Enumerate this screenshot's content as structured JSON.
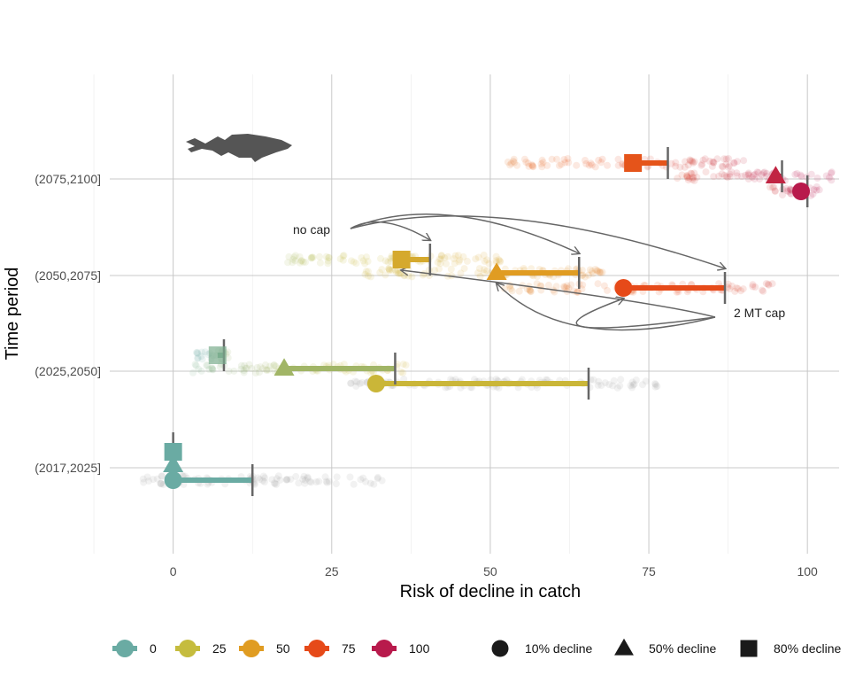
{
  "chart_data": {
    "type": "scatter",
    "xlabel": "Risk of decline in catch",
    "ylabel": "Time period",
    "xlim": [
      -10,
      105
    ],
    "x_ticks": [
      0,
      25,
      50,
      75,
      100
    ],
    "categories": [
      "(2017,2025]",
      "(2025,2050]",
      "(2050,2075]",
      "(2075,2100]"
    ],
    "grid": true,
    "legend_position": "bottom",
    "colors": {
      "0": "#6aaba3",
      "25": "#c5bc3e",
      "50": "#e09c22",
      "75": "#e64a19",
      "100": "#b81a4c",
      "cap_line": "#666666",
      "grey_jitter": "#999999",
      "fish": "#555555"
    },
    "series": [
      {
        "period": "(2017,2025]",
        "decline": "10%",
        "value": 0,
        "cap_value": 12.5,
        "color_value": 0
      },
      {
        "period": "(2017,2025]",
        "decline": "50%",
        "value": 0,
        "cap_value": 0,
        "color_value": 0
      },
      {
        "period": "(2017,2025]",
        "decline": "80%",
        "value": 0,
        "cap_value": 0,
        "color_value": 0
      },
      {
        "period": "(2025,2050]",
        "decline": "10%",
        "value": 32,
        "cap_value": 65.5,
        "color_value": 30
      },
      {
        "period": "(2025,2050]",
        "decline": "50%",
        "value": 17.5,
        "cap_value": 35,
        "color_value": 15
      },
      {
        "period": "(2025,2050]",
        "decline": "80%",
        "value": 7,
        "cap_value": 8,
        "color_value": 5
      },
      {
        "period": "(2050,2075]",
        "decline": "10%",
        "value": 71,
        "cap_value": 87,
        "color_value": 75
      },
      {
        "period": "(2050,2075]",
        "decline": "50%",
        "value": 51,
        "cap_value": 64,
        "color_value": 50
      },
      {
        "period": "(2050,2075]",
        "decline": "80%",
        "value": 36,
        "cap_value": 40.5,
        "color_value": 40
      },
      {
        "period": "(2075,2100]",
        "decline": "10%",
        "value": 99,
        "cap_value": 100,
        "color_value": 100
      },
      {
        "period": "(2075,2100]",
        "decline": "50%",
        "value": 95,
        "cap_value": 96,
        "color_value": 95
      },
      {
        "period": "(2075,2100]",
        "decline": "80%",
        "value": 72.5,
        "cap_value": 78,
        "color_value": 72
      }
    ],
    "jitter_ranges": [
      {
        "period": "(2017,2025]",
        "decline": "10%",
        "from": -5,
        "to": 34,
        "color_value": null
      },
      {
        "period": "(2025,2050]",
        "decline": "10%",
        "from": 28,
        "to": 78,
        "color_value": null
      },
      {
        "period": "(2025,2050]",
        "decline": "50%",
        "from": 3,
        "to": 37,
        "color_value": 20
      },
      {
        "period": "(2025,2050]",
        "decline": "80%",
        "from": 3,
        "to": 10,
        "color_value": 5
      },
      {
        "period": "(2050,2075]",
        "decline": "10%",
        "from": 52,
        "to": 95,
        "color_value": 72
      },
      {
        "period": "(2050,2075]",
        "decline": "50%",
        "from": 30,
        "to": 68,
        "color_value": 45
      },
      {
        "period": "(2050,2075]",
        "decline": "80%",
        "from": 18,
        "to": 52,
        "color_value": 32
      },
      {
        "period": "(2075,2100]",
        "decline": "10%",
        "from": 94,
        "to": 102,
        "color_value": 100
      },
      {
        "period": "(2075,2100]",
        "decline": "50%",
        "from": 78,
        "to": 104,
        "color_value": 95
      },
      {
        "period": "(2075,2100]",
        "decline": "80%",
        "from": 52,
        "to": 90,
        "color_value": 78
      }
    ],
    "annotations": [
      {
        "text": "no cap",
        "targets": [
          "(2050,2075]|80%",
          "(2050,2075]|50%",
          "(2050,2075]|10%"
        ],
        "arrow_to": "cap_value"
      },
      {
        "text": "2 MT cap",
        "targets": [
          "(2050,2075]|80%",
          "(2050,2075]|50%",
          "(2050,2075]|10%"
        ],
        "arrow_to": "value"
      }
    ],
    "legend": {
      "color_entries": [
        "0",
        "25",
        "50",
        "75",
        "100"
      ],
      "shape_entries": [
        {
          "label": "10% decline",
          "shape": "circle"
        },
        {
          "label": "50% decline",
          "shape": "triangle"
        },
        {
          "label": "80% decline",
          "shape": "square"
        }
      ]
    },
    "decorations": {
      "icon": "fish-silhouette-icon"
    }
  }
}
